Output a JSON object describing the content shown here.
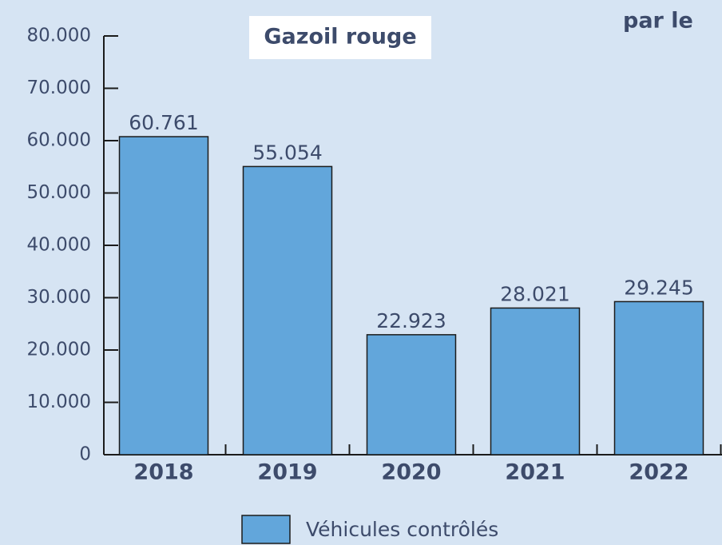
{
  "chart_data": {
    "type": "bar",
    "title": "Gazoil rouge",
    "subtitle": "par le",
    "categories": [
      "2018",
      "2019",
      "2020",
      "2021",
      "2022"
    ],
    "series": [
      {
        "name": "Véhicules contrôlés",
        "color": "#62a6db",
        "values": [
          60761,
          55054,
          22923,
          28021,
          29245
        ],
        "value_labels": [
          "60.761",
          "55.054",
          "22.923",
          "28.021",
          "29.245"
        ]
      }
    ],
    "ylim": [
      0,
      80000
    ],
    "yticks": [
      0,
      {
        "value": 10000,
        "label": "10.000"
      },
      {
        "value": 20000,
        "label": "20.000"
      },
      {
        "value": 30000,
        "label": "30.000"
      },
      {
        "value": 40000,
        "label": "40.000"
      },
      {
        "value": 50000,
        "label": "50.000"
      },
      {
        "value": 60000,
        "label": "60.000"
      },
      {
        "value": 70000,
        "label": "70.000"
      },
      {
        "value": 80000,
        "label": "80.000"
      }
    ],
    "legend": "bottom"
  }
}
